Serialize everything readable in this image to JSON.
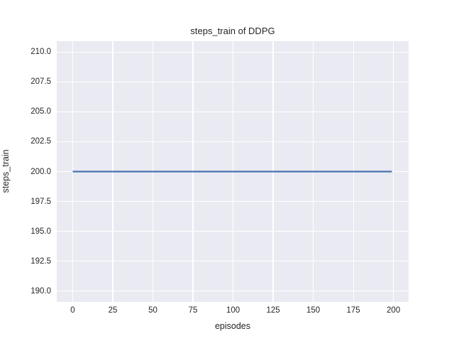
{
  "title": "steps_train of DDPG",
  "chart_data": {
    "type": "line",
    "title": "steps_train of DDPG",
    "xlabel": "episodes",
    "ylabel": "steps_train",
    "xlim": [
      -9.95,
      209.45
    ],
    "ylim": [
      189.08,
      210.92
    ],
    "xticks": [
      0,
      25,
      50,
      75,
      100,
      125,
      150,
      175,
      200
    ],
    "xtick_labels": [
      "0",
      "25",
      "50",
      "75",
      "100",
      "125",
      "150",
      "175",
      "200"
    ],
    "yticks": [
      190.0,
      192.5,
      195.0,
      197.5,
      200.0,
      202.5,
      205.0,
      207.5,
      210.0
    ],
    "ytick_labels": [
      "190.0",
      "192.5",
      "195.0",
      "197.5",
      "200.0",
      "202.5",
      "205.0",
      "207.5",
      "210.0"
    ],
    "grid": true,
    "legend": "none",
    "colors": {
      "plot_background": "#eaeaf2",
      "figure_background": "#ffffff",
      "gridline": "#ffffff",
      "text": "#262626",
      "line": "#4c72b0"
    },
    "series": [
      {
        "name": "steps_train",
        "x": [
          0,
          199
        ],
        "y": [
          200,
          200
        ],
        "description": "constant value 200 for all episodes 0-199"
      }
    ]
  }
}
